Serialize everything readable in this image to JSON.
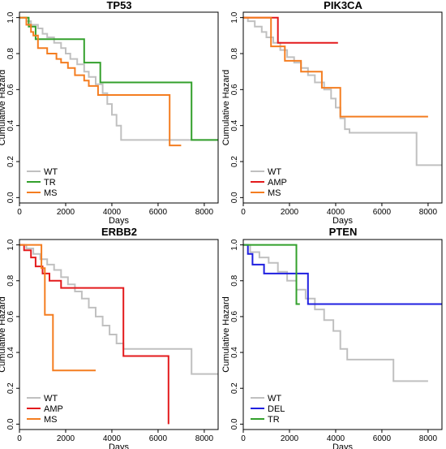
{
  "chart_data": [
    {
      "type": "line",
      "title": "TP53",
      "xlabel": "Days",
      "ylabel": "Cumulative Hazard",
      "xlim": [
        0,
        8600
      ],
      "ylim": [
        -0.03,
        1.03
      ],
      "xticks": [
        "0",
        "2000",
        "4000",
        "6000",
        "8000"
      ],
      "yticks": [
        "0.0",
        "0.2",
        "0.4",
        "0.6",
        "0.8",
        "1.0"
      ],
      "legend_position": "bottom-left",
      "series": [
        {
          "name": "WT",
          "color": "#c0c0c0",
          "x": [
            0,
            300,
            500,
            800,
            1000,
            1200,
            1500,
            1800,
            2000,
            2200,
            2500,
            2800,
            3000,
            3300,
            3600,
            3800,
            4000,
            4200,
            4400,
            6500,
            7500,
            8600
          ],
          "y": [
            1.0,
            0.98,
            0.96,
            0.94,
            0.91,
            0.89,
            0.86,
            0.83,
            0.8,
            0.77,
            0.74,
            0.7,
            0.67,
            0.63,
            0.58,
            0.52,
            0.46,
            0.4,
            0.32,
            0.32,
            0.32,
            0.32
          ]
        },
        {
          "name": "TR",
          "color": "#33a02c",
          "x": [
            0,
            400,
            700,
            1600,
            2800,
            3500,
            5100,
            7450,
            8600
          ],
          "y": [
            1.0,
            0.95,
            0.88,
            0.88,
            0.75,
            0.64,
            0.64,
            0.32,
            0.32
          ]
        },
        {
          "name": "MS",
          "color": "#f47d20",
          "x": [
            0,
            300,
            500,
            600,
            800,
            1200,
            1600,
            1800,
            2100,
            2400,
            2800,
            3000,
            3400,
            6500,
            7000
          ],
          "y": [
            1.0,
            0.96,
            0.92,
            0.9,
            0.83,
            0.8,
            0.77,
            0.75,
            0.72,
            0.68,
            0.65,
            0.62,
            0.57,
            0.29,
            0.29
          ]
        }
      ]
    },
    {
      "type": "line",
      "title": "PIK3CA",
      "xlabel": "Days",
      "ylabel": "Cumulative Hazard",
      "xlim": [
        0,
        8600
      ],
      "ylim": [
        -0.03,
        1.03
      ],
      "xticks": [
        "0",
        "2000",
        "4000",
        "6000",
        "8000"
      ],
      "yticks": [
        "0.0",
        "0.2",
        "0.4",
        "0.6",
        "0.8",
        "1.0"
      ],
      "legend_position": "bottom-left",
      "series": [
        {
          "name": "WT",
          "color": "#c0c0c0",
          "x": [
            0,
            200,
            500,
            800,
            1000,
            1300,
            1600,
            1900,
            2200,
            2500,
            2800,
            3100,
            3500,
            3800,
            4000,
            4200,
            4400,
            4600,
            7500,
            8600
          ],
          "y": [
            1.0,
            0.98,
            0.95,
            0.92,
            0.89,
            0.86,
            0.82,
            0.78,
            0.75,
            0.72,
            0.68,
            0.64,
            0.6,
            0.55,
            0.5,
            0.44,
            0.38,
            0.36,
            0.18,
            0.18
          ]
        },
        {
          "name": "AMP",
          "color": "#e31a1c",
          "x": [
            0,
            1500,
            4100
          ],
          "y": [
            1.0,
            0.86,
            0.86
          ]
        },
        {
          "name": "MS",
          "color": "#f47d20",
          "x": [
            0,
            1200,
            1800,
            2500,
            3400,
            4200,
            8000
          ],
          "y": [
            1.0,
            0.84,
            0.76,
            0.7,
            0.61,
            0.45,
            0.45
          ]
        }
      ]
    },
    {
      "type": "line",
      "title": "ERBB2",
      "xlabel": "Days",
      "ylabel": "Cumulative Hazard",
      "xlim": [
        0,
        8600
      ],
      "ylim": [
        -0.03,
        1.03
      ],
      "xticks": [
        "0",
        "2000",
        "4000",
        "6000",
        "8000"
      ],
      "yticks": [
        "0.0",
        "0.2",
        "0.4",
        "0.6",
        "0.8",
        "1.0"
      ],
      "legend_position": "bottom-left",
      "series": [
        {
          "name": "WT",
          "color": "#c0c0c0",
          "x": [
            0,
            300,
            600,
            900,
            1200,
            1500,
            1800,
            2100,
            2400,
            2700,
            3000,
            3300,
            3600,
            3900,
            4200,
            4500,
            7450,
            8600
          ],
          "y": [
            1.0,
            0.98,
            0.95,
            0.92,
            0.89,
            0.86,
            0.82,
            0.78,
            0.74,
            0.7,
            0.65,
            0.6,
            0.55,
            0.5,
            0.45,
            0.42,
            0.28,
            0.28
          ]
        },
        {
          "name": "AMP",
          "color": "#e31a1c",
          "x": [
            0,
            200,
            500,
            700,
            1000,
            1300,
            1800,
            2300,
            4500,
            6450
          ],
          "y": [
            1.0,
            0.97,
            0.93,
            0.88,
            0.84,
            0.8,
            0.76,
            0.76,
            0.38,
            0.0
          ]
        },
        {
          "name": "MS",
          "color": "#f47d20",
          "x": [
            0,
            950,
            1100,
            1450,
            3300
          ],
          "y": [
            1.0,
            0.87,
            0.61,
            0.3,
            0.3
          ]
        }
      ]
    },
    {
      "type": "line",
      "title": "PTEN",
      "xlabel": "Days",
      "ylabel": "Cumulative Hazard",
      "xlim": [
        0,
        8600
      ],
      "ylim": [
        -0.03,
        1.03
      ],
      "xticks": [
        "0",
        "2000",
        "4000",
        "6000",
        "8000"
      ],
      "yticks": [
        "0.0",
        "0.2",
        "0.4",
        "0.6",
        "0.8",
        "1.0"
      ],
      "legend_position": "bottom-left",
      "series": [
        {
          "name": "WT",
          "color": "#c0c0c0",
          "x": [
            0,
            300,
            700,
            1100,
            1500,
            1900,
            2300,
            2700,
            3100,
            3500,
            3900,
            4200,
            4500,
            6500,
            8000
          ],
          "y": [
            1.0,
            0.96,
            0.93,
            0.9,
            0.85,
            0.8,
            0.75,
            0.7,
            0.64,
            0.58,
            0.52,
            0.42,
            0.36,
            0.24,
            0.24
          ]
        },
        {
          "name": "DEL",
          "color": "#1f1fe0",
          "x": [
            0,
            200,
            400,
            900,
            2800,
            8600
          ],
          "y": [
            1.0,
            0.95,
            0.89,
            0.84,
            0.67,
            0.67
          ]
        },
        {
          "name": "TR",
          "color": "#33a02c",
          "x": [
            0,
            2300,
            2450
          ],
          "y": [
            1.0,
            0.67,
            0.67
          ]
        }
      ]
    }
  ]
}
